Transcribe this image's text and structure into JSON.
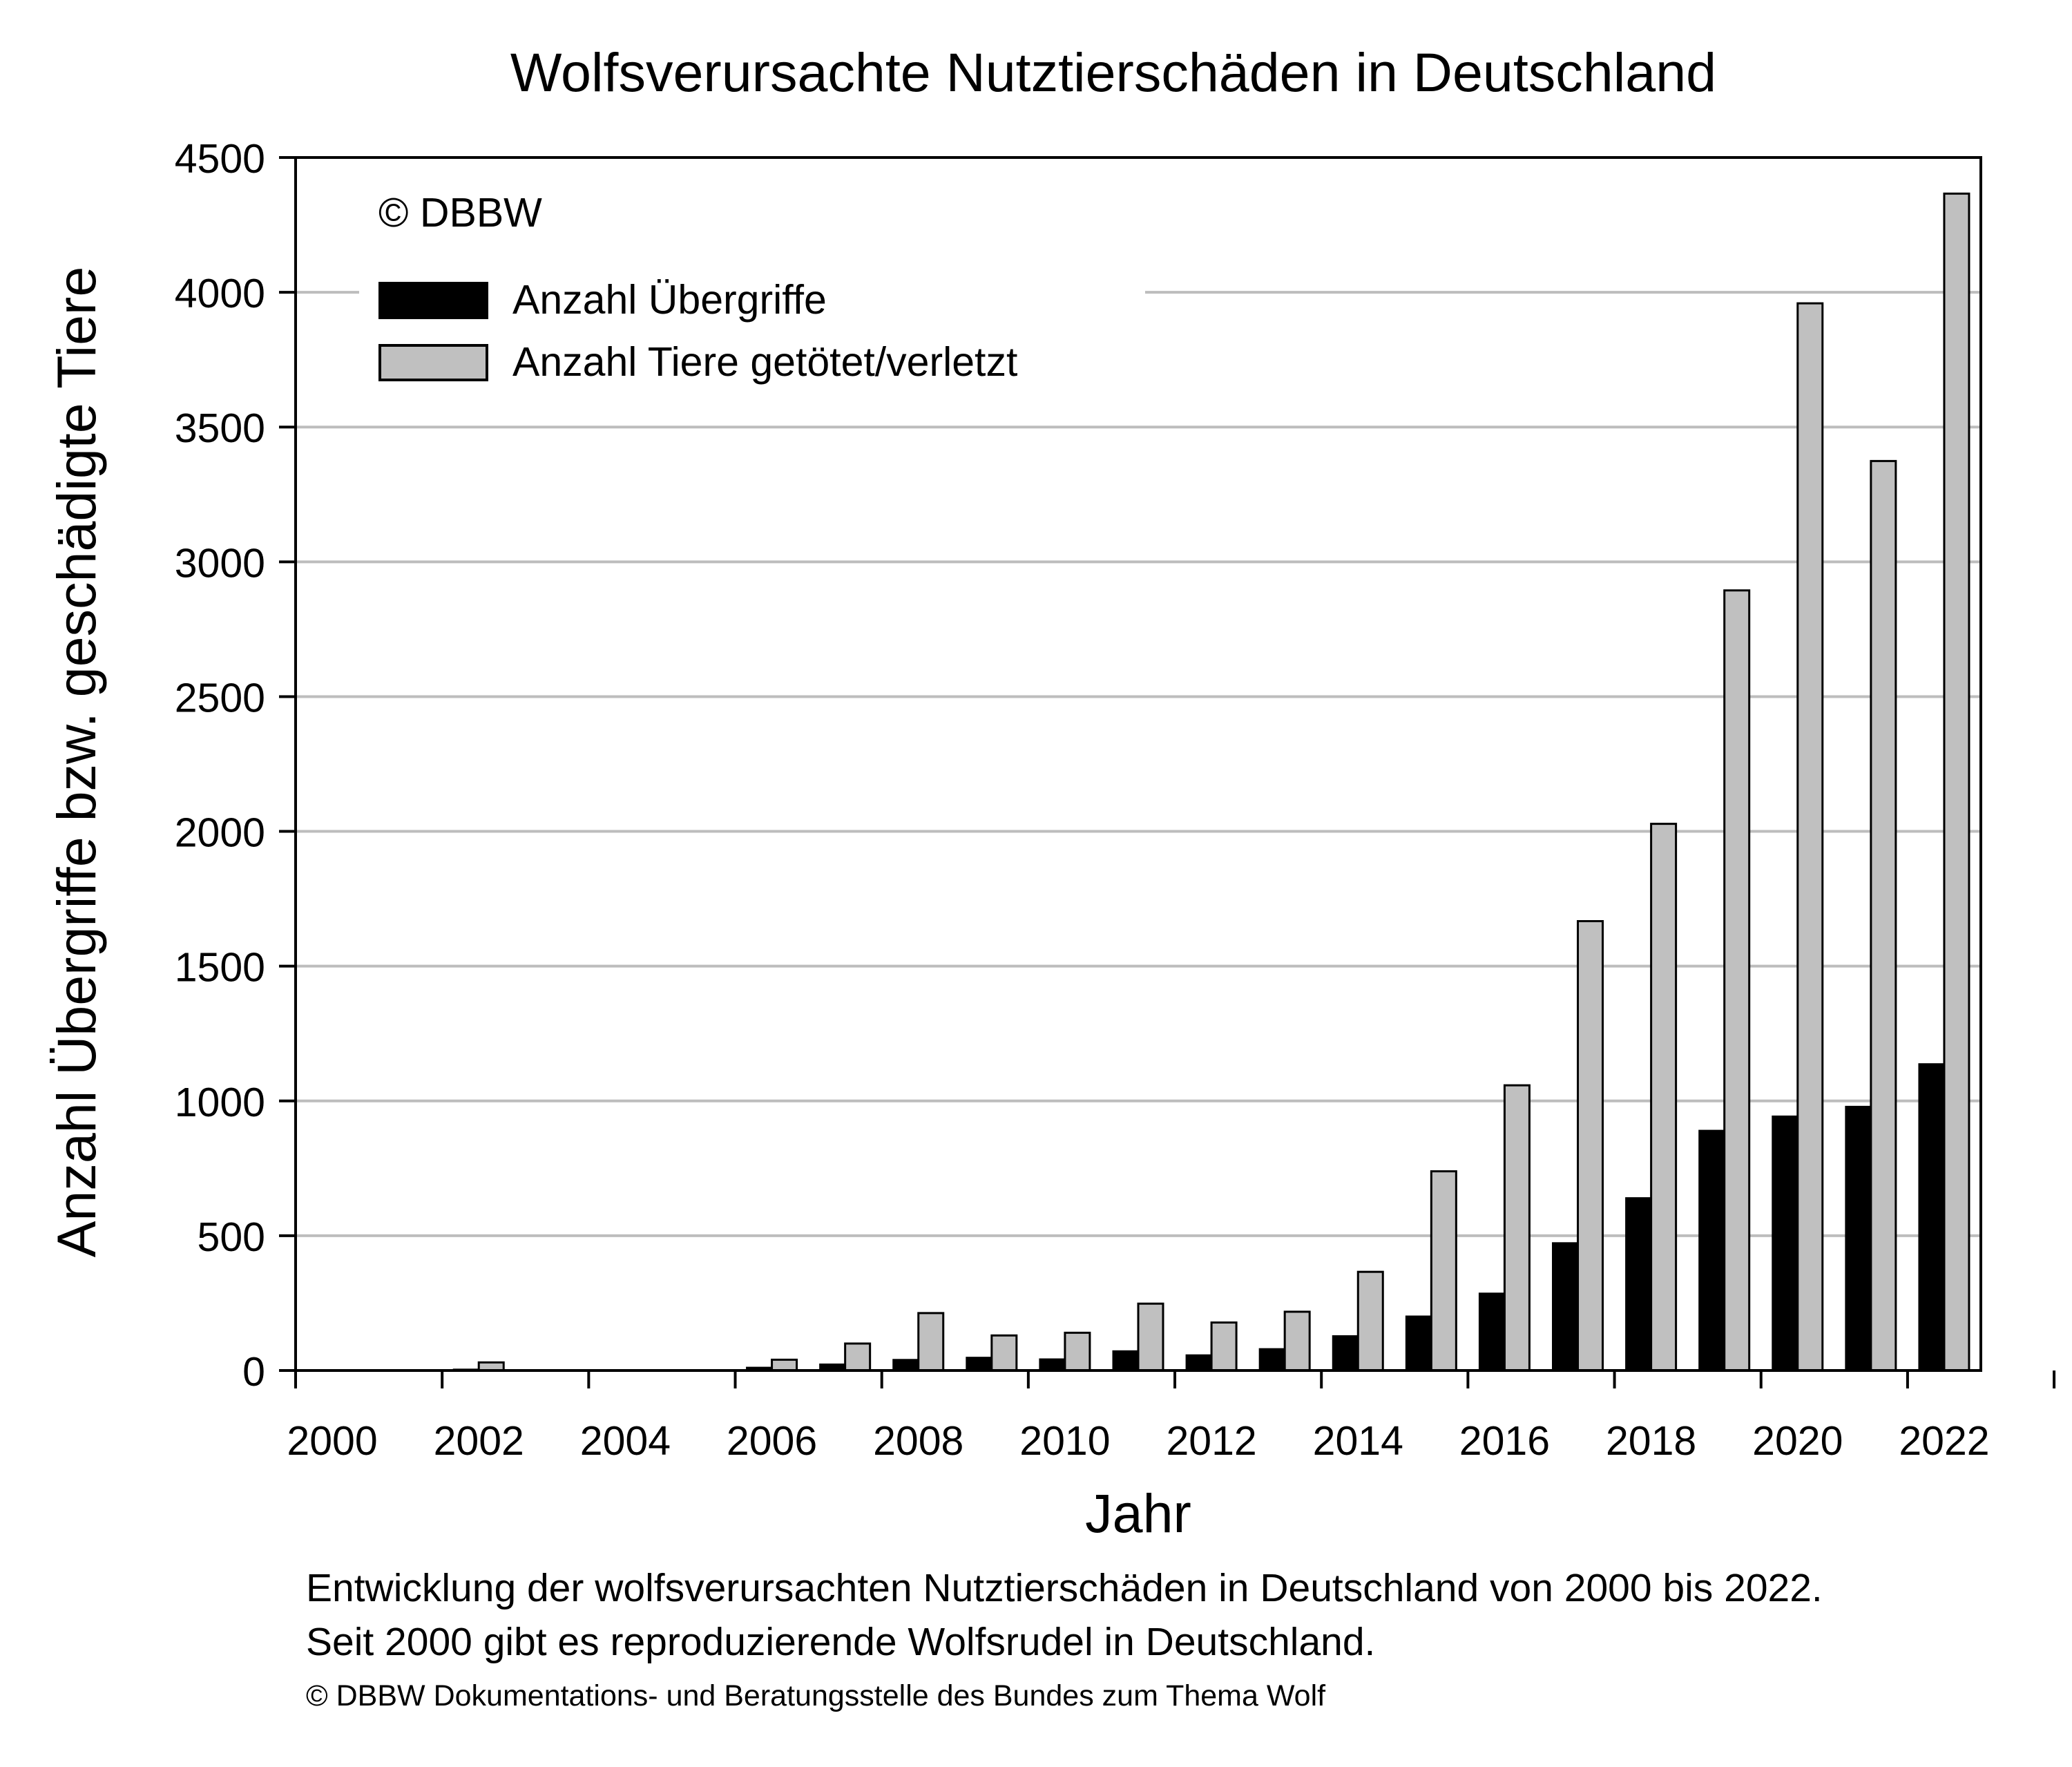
{
  "chart_data": {
    "type": "bar",
    "title": "Wolfsverursachte Nutztierschäden in Deutschland",
    "xlabel": "Jahr",
    "ylabel": "Anzahl Übergriffe bzw. geschädigte Tiere",
    "ylim": [
      0,
      4500
    ],
    "yticks": [
      0,
      500,
      1000,
      1500,
      2000,
      2500,
      3000,
      3500,
      4000,
      4500
    ],
    "xtick_labels": [
      "2000",
      "2002",
      "2004",
      "2006",
      "2008",
      "2010",
      "2012",
      "2014",
      "2016",
      "2018",
      "2020",
      "2022"
    ],
    "categories": [
      "2000",
      "2001",
      "2002",
      "2003",
      "2004",
      "2005",
      "2006",
      "2007",
      "2008",
      "2009",
      "2010",
      "2011",
      "2012",
      "2013",
      "2014",
      "2015",
      "2016",
      "2017",
      "2018",
      "2019",
      "2020",
      "2021",
      "2022"
    ],
    "series": [
      {
        "name": "Anzahl Übergriffe",
        "color": "#000000",
        "values": [
          0,
          0,
          3,
          0,
          0,
          0,
          10,
          22,
          39,
          47,
          41,
          71,
          56,
          79,
          127,
          200,
          285,
          472,
          639,
          889,
          942,
          978,
          1136
        ]
      },
      {
        "name": "Anzahl Tiere getötet/verletzt",
        "color": "#c0c0c0",
        "values": [
          0,
          0,
          30,
          0,
          0,
          0,
          40,
          100,
          213,
          130,
          140,
          248,
          178,
          218,
          366,
          739,
          1058,
          1667,
          2028,
          2894,
          3959,
          3374,
          4366
        ]
      }
    ],
    "annotation": "© DBBW",
    "grid": "horizontal",
    "legend_position": "top-left"
  },
  "captions": {
    "line1": "Entwicklung der wolfsverursachten Nutztierschäden in Deutschland von 2000 bis 2022.",
    "line2": "Seit 2000 gibt es reproduzierende Wolfsrudel in Deutschland.",
    "line3": "© DBBW Dokumentations- und Beratungsstelle des Bundes zum Thema Wolf"
  }
}
